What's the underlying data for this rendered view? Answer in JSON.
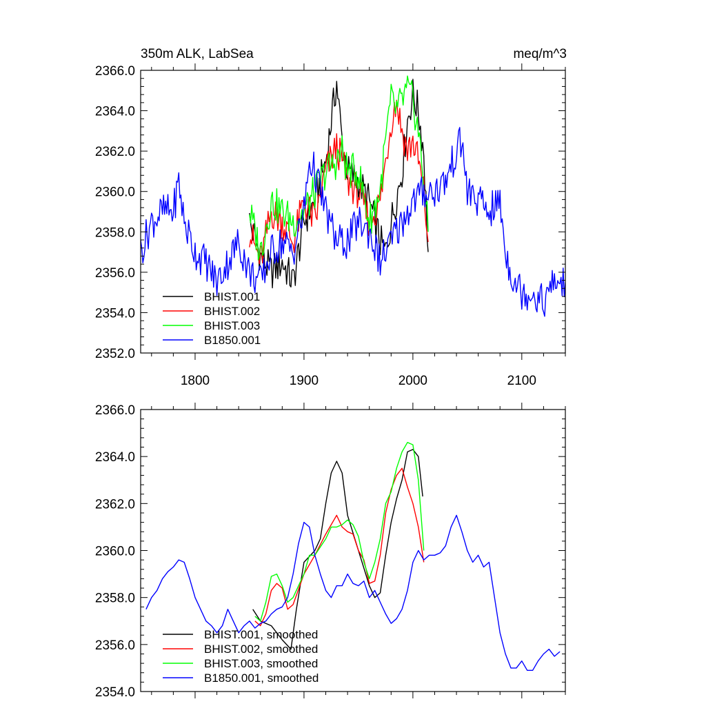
{
  "title_left": "350m ALK, LabSea",
  "title_right": "meq/m^3",
  "colors": {
    "BHIST.001": "#000000",
    "BHIST.002": "#ff0000",
    "BHIST.003": "#00ff00",
    "B1850.001": "#0000ff"
  },
  "chart_data": [
    {
      "type": "line",
      "title": "350m ALK, LabSea",
      "units": "meq/m^3",
      "xlim": [
        1750,
        2140
      ],
      "ylim": [
        2352.0,
        2366.0
      ],
      "xticks": [
        1800,
        1900,
        2000,
        2100
      ],
      "xtick_labels": [
        "1800",
        "1900",
        "2000",
        "2100"
      ],
      "yticks": [
        2352.0,
        2354.0,
        2356.0,
        2358.0,
        2360.0,
        2362.0,
        2364.0,
        2366.0
      ],
      "ytick_labels": [
        "2352.0",
        "2354.0",
        "2356.0",
        "2358.0",
        "2360.0",
        "2362.0",
        "2364.0",
        "2366.0"
      ],
      "legend_position": "bottom-left",
      "series": [
        {
          "name": "BHIST.001",
          "color": "#000000",
          "x": [
            1850,
            1860,
            1870,
            1880,
            1890,
            1900,
            1910,
            1920,
            1925,
            1930,
            1935,
            1940,
            1950,
            1960,
            1970,
            1975,
            1980,
            1990,
            1995,
            2000,
            2005,
            2010,
            2014
          ],
          "y": [
            2358.5,
            2356.8,
            2356.0,
            2356.5,
            2355.5,
            2358.5,
            2359.5,
            2361.5,
            2363.5,
            2365.4,
            2362.5,
            2361.0,
            2360.5,
            2359.5,
            2357.5,
            2357.0,
            2358.5,
            2361.0,
            2363.5,
            2364.8,
            2364.0,
            2362.0,
            2357.0
          ]
        },
        {
          "name": "BHIST.002",
          "color": "#ff0000",
          "x": [
            1850,
            1860,
            1870,
            1880,
            1890,
            1900,
            1910,
            1920,
            1930,
            1935,
            1940,
            1950,
            1960,
            1970,
            1975,
            1980,
            1985,
            1990,
            1995,
            2000,
            2005,
            2010,
            2014
          ],
          "y": [
            2358.0,
            2356.5,
            2359.0,
            2358.5,
            2357.5,
            2359.5,
            2358.5,
            2361.0,
            2362.2,
            2361.5,
            2360.5,
            2360.0,
            2358.5,
            2359.5,
            2361.5,
            2363.5,
            2364.5,
            2363.0,
            2362.0,
            2362.5,
            2361.5,
            2360.0,
            2357.5
          ]
        },
        {
          "name": "BHIST.003",
          "color": "#00ff00",
          "x": [
            1850,
            1860,
            1870,
            1880,
            1890,
            1900,
            1910,
            1920,
            1930,
            1935,
            1940,
            1950,
            1960,
            1970,
            1975,
            1980,
            1985,
            1990,
            1995,
            2000,
            2005,
            2010,
            2014
          ],
          "y": [
            2359.0,
            2357.0,
            2359.5,
            2359.0,
            2358.5,
            2359.0,
            2360.0,
            2361.0,
            2361.5,
            2362.0,
            2361.0,
            2361.0,
            2358.5,
            2360.0,
            2362.5,
            2364.5,
            2364.0,
            2364.5,
            2365.0,
            2364.5,
            2363.0,
            2360.5,
            2358.0
          ]
        },
        {
          "name": "B1850.001",
          "color": "#0000ff",
          "x": [
            1750,
            1760,
            1770,
            1780,
            1785,
            1790,
            1800,
            1810,
            1820,
            1830,
            1840,
            1850,
            1860,
            1870,
            1880,
            1890,
            1900,
            1905,
            1910,
            1920,
            1930,
            1940,
            1950,
            1960,
            1970,
            1980,
            1990,
            2000,
            2010,
            2020,
            2030,
            2040,
            2045,
            2050,
            2060,
            2070,
            2080,
            2085,
            2090,
            2100,
            2110,
            2120,
            2130,
            2140
          ],
          "y": [
            2357.0,
            2358.5,
            2359.0,
            2359.0,
            2360.5,
            2358.5,
            2357.0,
            2356.5,
            2355.5,
            2356.5,
            2357.5,
            2356.0,
            2355.5,
            2357.0,
            2357.5,
            2357.0,
            2359.0,
            2361.5,
            2361.0,
            2359.0,
            2357.5,
            2357.5,
            2358.5,
            2358.0,
            2356.5,
            2357.5,
            2358.5,
            2359.5,
            2360.0,
            2360.0,
            2360.5,
            2362.0,
            2362.5,
            2360.0,
            2359.5,
            2359.0,
            2359.5,
            2357.0,
            2356.0,
            2355.0,
            2355.0,
            2354.5,
            2355.5,
            2355.5
          ]
        }
      ]
    },
    {
      "type": "line",
      "xlim": [
        1750,
        2140
      ],
      "ylim": [
        2354.0,
        2366.0
      ],
      "xticks": [
        1800,
        1900,
        2000,
        2100
      ],
      "yticks": [
        2354.0,
        2356.0,
        2358.0,
        2360.0,
        2362.0,
        2364.0,
        2366.0
      ],
      "ytick_labels": [
        "2354.0",
        "2356.0",
        "2358.0",
        "2360.0",
        "2362.0",
        "2364.0",
        "2366.0"
      ],
      "legend_position": "bottom-left",
      "series": [
        {
          "name": "BHIST.001, smoothed",
          "color": "#000000",
          "x": [
            1853,
            1860,
            1870,
            1880,
            1888,
            1893,
            1900,
            1910,
            1915,
            1920,
            1925,
            1930,
            1935,
            1940,
            1950,
            1960,
            1965,
            1970,
            1975,
            1980,
            1985,
            1990,
            1995,
            2000,
            2005,
            2009
          ],
          "y": [
            2357.5,
            2357.0,
            2356.8,
            2356.2,
            2355.8,
            2357.5,
            2359.5,
            2360.0,
            2360.5,
            2362.0,
            2363.3,
            2363.8,
            2363.3,
            2361.5,
            2360.0,
            2358.5,
            2358.0,
            2358.2,
            2359.8,
            2361.2,
            2362.2,
            2363.0,
            2364.2,
            2364.3,
            2364.0,
            2362.3
          ]
        },
        {
          "name": "BHIST.002, smoothed",
          "color": "#ff0000",
          "x": [
            1855,
            1860,
            1865,
            1870,
            1875,
            1880,
            1885,
            1890,
            1900,
            1910,
            1920,
            1930,
            1935,
            1940,
            1945,
            1950,
            1955,
            1960,
            1965,
            1970,
            1975,
            1980,
            1985,
            1990,
            1995,
            2000,
            2005,
            2010
          ],
          "y": [
            2357.0,
            2356.8,
            2357.3,
            2358.3,
            2358.6,
            2358.4,
            2357.5,
            2357.7,
            2359.0,
            2359.8,
            2360.7,
            2361.5,
            2361.0,
            2360.8,
            2360.7,
            2360.0,
            2359.6,
            2358.6,
            2358.7,
            2359.8,
            2361.6,
            2362.6,
            2363.2,
            2363.5,
            2362.7,
            2362.0,
            2361.0,
            2359.5
          ]
        },
        {
          "name": "BHIST.003, smoothed",
          "color": "#00ff00",
          "x": [
            1855,
            1860,
            1865,
            1870,
            1875,
            1880,
            1885,
            1890,
            1900,
            1905,
            1910,
            1920,
            1925,
            1930,
            1935,
            1940,
            1945,
            1950,
            1955,
            1960,
            1965,
            1970,
            1975,
            1980,
            1985,
            1990,
            1995,
            2000,
            2005,
            2010
          ],
          "y": [
            2357.2,
            2357.0,
            2357.8,
            2358.9,
            2359.0,
            2358.5,
            2357.8,
            2358.0,
            2359.0,
            2359.8,
            2359.8,
            2360.5,
            2361.0,
            2361.0,
            2361.1,
            2361.3,
            2361.1,
            2360.6,
            2359.5,
            2358.8,
            2359.5,
            2360.5,
            2362.0,
            2362.5,
            2363.5,
            2364.2,
            2364.6,
            2364.5,
            2363.0,
            2360.0
          ]
        },
        {
          "name": "B1850.001, smoothed",
          "color": "#0000ff",
          "x": [
            1755,
            1760,
            1765,
            1770,
            1775,
            1780,
            1785,
            1790,
            1795,
            1800,
            1805,
            1810,
            1815,
            1820,
            1825,
            1830,
            1835,
            1840,
            1845,
            1850,
            1855,
            1860,
            1865,
            1870,
            1875,
            1880,
            1885,
            1890,
            1895,
            1900,
            1905,
            1910,
            1915,
            1920,
            1925,
            1930,
            1935,
            1940,
            1945,
            1950,
            1955,
            1960,
            1965,
            1970,
            1975,
            1980,
            1985,
            1990,
            1995,
            2000,
            2005,
            2010,
            2015,
            2020,
            2025,
            2030,
            2035,
            2040,
            2045,
            2050,
            2055,
            2060,
            2065,
            2070,
            2075,
            2080,
            2085,
            2090,
            2095,
            2100,
            2105,
            2110,
            2115,
            2120,
            2125,
            2130,
            2135
          ],
          "y": [
            2357.5,
            2358.0,
            2358.3,
            2358.8,
            2359.1,
            2359.3,
            2359.6,
            2359.5,
            2358.8,
            2358.0,
            2357.5,
            2357.0,
            2356.8,
            2356.5,
            2356.8,
            2357.5,
            2357.0,
            2356.5,
            2356.8,
            2357.0,
            2356.7,
            2356.9,
            2357.0,
            2357.3,
            2357.5,
            2357.6,
            2358.0,
            2359.0,
            2360.3,
            2361.2,
            2361.0,
            2359.8,
            2359.0,
            2358.3,
            2358.0,
            2358.5,
            2358.5,
            2359.0,
            2358.6,
            2358.5,
            2358.7,
            2358.0,
            2358.3,
            2357.8,
            2357.3,
            2356.9,
            2357.1,
            2357.5,
            2358.3,
            2359.5,
            2360.0,
            2359.6,
            2359.8,
            2359.8,
            2359.9,
            2360.2,
            2361.0,
            2361.5,
            2360.8,
            2360.0,
            2359.5,
            2359.8,
            2359.3,
            2359.5,
            2358.0,
            2356.5,
            2355.6,
            2355.0,
            2355.0,
            2355.3,
            2354.9,
            2354.9,
            2355.3,
            2355.6,
            2355.8,
            2355.5,
            2355.7
          ]
        }
      ]
    }
  ]
}
